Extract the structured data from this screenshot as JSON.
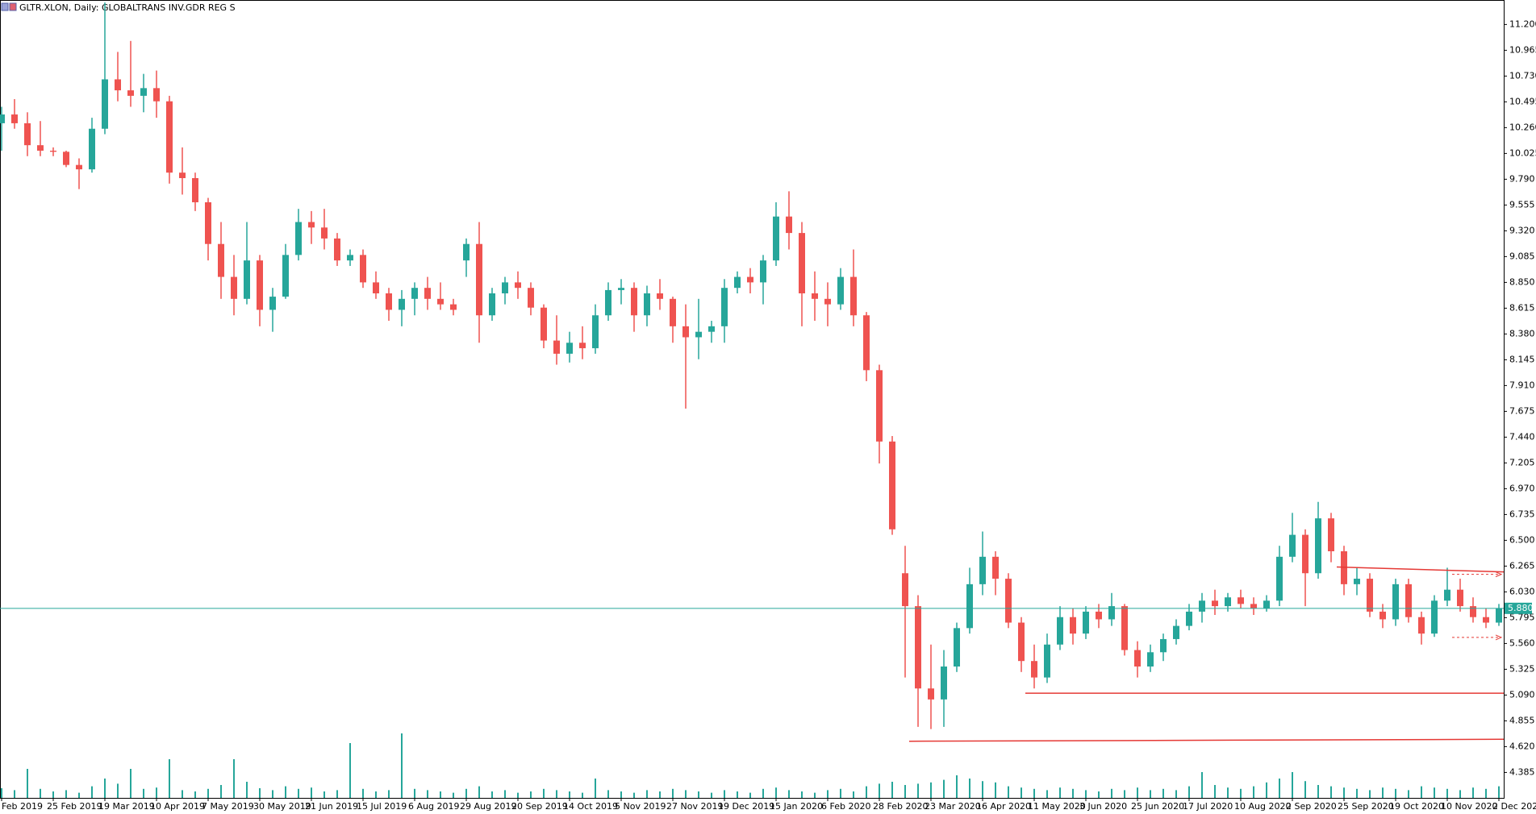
{
  "chart_data": {
    "type": "candlestick",
    "title": "GLTR.XLON, Daily:  GLOBALTRANS INV.GDR REG S",
    "up_color": "#26a69a",
    "down_color": "#ef5350",
    "volume_color": "#26a69a",
    "categories": [
      "Feb 2019",
      null,
      null,
      null,
      "25 Feb 2019",
      null,
      null,
      null,
      "19 Mar 2019",
      null,
      null,
      null,
      "10 Apr 2019",
      null,
      null,
      null,
      "7 May 2019",
      null,
      null,
      null,
      "30 May 2019",
      null,
      null,
      null,
      "21 Jun 2019",
      null,
      null,
      null,
      "15 Jul 2019",
      null,
      null,
      null,
      "6 Aug 2019",
      null,
      null,
      null,
      "29 Aug 2019",
      null,
      null,
      null,
      "20 Sep 2019",
      null,
      null,
      null,
      "14 Oct 2019",
      null,
      null,
      null,
      "5 Nov 2019",
      null,
      null,
      null,
      "27 Nov 2019",
      null,
      null,
      null,
      "19 Dec 2019",
      null,
      null,
      null,
      "15 Jan 2020",
      null,
      null,
      null,
      "6 Feb 2020",
      null,
      null,
      null,
      "28 Feb 2020",
      null,
      null,
      null,
      "23 Mar 2020",
      null,
      null,
      null,
      "16 Apr 2020",
      null,
      null,
      null,
      "11 May 2020",
      null,
      null,
      null,
      "3 Jun 2020",
      null,
      null,
      null,
      "25 Jun 2020",
      null,
      null,
      null,
      "17 Jul 2020",
      null,
      null,
      null,
      "10 Aug 2020",
      null,
      null,
      null,
      "2 Sep 2020",
      null,
      null,
      null,
      "25 Sep 2020",
      null,
      null,
      null,
      "19 Oct 2020",
      null,
      null,
      null,
      "10 Nov 2020",
      null,
      null,
      null,
      "2 Dec 2020"
    ],
    "open": [
      10.3,
      10.38,
      10.3,
      10.1,
      10.05,
      10.04,
      9.92,
      9.88,
      10.25,
      10.7,
      10.6,
      10.55,
      10.62,
      10.5,
      9.85,
      9.8,
      9.58,
      9.2,
      8.9,
      8.7,
      9.05,
      8.6,
      8.72,
      9.1,
      9.4,
      9.35,
      9.25,
      9.05,
      9.1,
      8.85,
      8.75,
      8.6,
      8.7,
      8.8,
      8.7,
      8.65,
      9.05,
      9.2,
      8.55,
      8.75,
      8.85,
      8.8,
      8.62,
      8.32,
      8.2,
      8.3,
      8.25,
      8.55,
      8.78,
      8.8,
      8.55,
      8.75,
      8.7,
      8.45,
      8.35,
      8.4,
      8.45,
      8.8,
      8.9,
      8.85,
      9.05,
      9.45,
      9.3,
      8.75,
      8.7,
      8.65,
      8.9,
      8.55,
      8.05,
      7.4,
      6.2,
      5.9,
      5.15,
      5.05,
      5.35,
      5.7,
      6.1,
      6.35,
      6.15,
      5.75,
      5.4,
      5.25,
      5.55,
      5.8,
      5.65,
      5.85,
      5.78,
      5.9,
      5.5,
      5.35,
      5.48,
      5.6,
      5.72,
      5.85,
      5.95,
      5.9,
      5.98,
      5.92,
      5.88,
      5.95,
      6.35,
      6.55,
      6.2,
      6.7,
      6.4,
      6.1,
      6.15,
      5.85,
      5.78,
      6.1,
      5.8,
      5.65,
      5.95,
      6.05,
      5.9,
      5.8,
      5.75
    ],
    "high": [
      10.45,
      10.52,
      10.4,
      10.32,
      10.08,
      10.05,
      9.98,
      10.35,
      11.4,
      10.95,
      11.05,
      10.75,
      10.78,
      10.55,
      10.08,
      9.85,
      9.62,
      9.4,
      9.1,
      9.4,
      9.1,
      8.8,
      9.2,
      9.52,
      9.5,
      9.52,
      9.3,
      9.15,
      9.15,
      8.95,
      8.8,
      8.78,
      8.85,
      8.9,
      8.85,
      8.7,
      9.25,
      9.4,
      8.8,
      8.9,
      8.95,
      8.85,
      8.65,
      8.55,
      8.4,
      8.45,
      8.65,
      8.85,
      8.88,
      8.85,
      8.82,
      8.88,
      8.72,
      8.65,
      8.7,
      8.5,
      8.88,
      8.95,
      8.98,
      9.1,
      9.58,
      9.68,
      9.4,
      8.95,
      8.85,
      8.98,
      9.15,
      8.58,
      8.1,
      7.45,
      6.45,
      6.0,
      5.55,
      5.5,
      5.75,
      6.25,
      6.58,
      6.4,
      6.2,
      5.8,
      5.55,
      5.65,
      5.9,
      5.88,
      5.9,
      5.92,
      6.02,
      5.92,
      5.58,
      5.55,
      5.65,
      5.78,
      5.92,
      6.02,
      6.05,
      6.02,
      6.05,
      5.98,
      6.0,
      6.45,
      6.75,
      6.6,
      6.85,
      6.75,
      6.45,
      6.25,
      6.2,
      5.92,
      6.15,
      6.15,
      5.85,
      6.0,
      6.25,
      6.15,
      5.98,
      5.88,
      5.92
    ],
    "low": [
      10.05,
      10.25,
      10.0,
      10.0,
      10.0,
      9.9,
      9.7,
      9.85,
      10.2,
      10.5,
      10.45,
      10.4,
      10.35,
      9.75,
      9.65,
      9.5,
      9.05,
      8.7,
      8.55,
      8.65,
      8.45,
      8.4,
      8.7,
      9.05,
      9.2,
      9.15,
      9.0,
      9.0,
      8.8,
      8.7,
      8.5,
      8.45,
      8.55,
      8.6,
      8.6,
      8.55,
      8.9,
      8.3,
      8.5,
      8.65,
      8.7,
      8.55,
      8.25,
      8.1,
      8.12,
      8.15,
      8.2,
      8.5,
      8.65,
      8.4,
      8.45,
      8.6,
      8.3,
      7.7,
      8.15,
      8.3,
      8.3,
      8.75,
      8.75,
      8.65,
      9.0,
      9.15,
      8.45,
      8.5,
      8.45,
      8.6,
      8.45,
      7.95,
      7.2,
      6.55,
      5.25,
      4.8,
      4.78,
      4.8,
      5.3,
      5.65,
      6.0,
      6.0,
      5.7,
      5.3,
      5.15,
      5.2,
      5.5,
      5.55,
      5.6,
      5.7,
      5.72,
      5.45,
      5.25,
      5.3,
      5.4,
      5.55,
      5.68,
      5.75,
      5.82,
      5.85,
      5.88,
      5.82,
      5.85,
      5.9,
      6.3,
      5.9,
      6.15,
      6.3,
      6.0,
      6.0,
      5.8,
      5.7,
      5.72,
      5.75,
      5.55,
      5.62,
      5.9,
      5.85,
      5.75,
      5.7,
      5.72
    ],
    "close": [
      10.38,
      10.3,
      10.1,
      10.05,
      10.04,
      9.92,
      9.88,
      10.25,
      10.7,
      10.6,
      10.55,
      10.62,
      10.5,
      9.85,
      9.8,
      9.58,
      9.2,
      8.9,
      8.7,
      9.05,
      8.6,
      8.72,
      9.1,
      9.4,
      9.35,
      9.25,
      9.05,
      9.1,
      8.85,
      8.75,
      8.6,
      8.7,
      8.8,
      8.7,
      8.65,
      8.6,
      9.2,
      8.55,
      8.75,
      8.85,
      8.8,
      8.62,
      8.32,
      8.2,
      8.3,
      8.25,
      8.55,
      8.78,
      8.8,
      8.55,
      8.75,
      8.7,
      8.45,
      8.35,
      8.4,
      8.45,
      8.8,
      8.9,
      8.85,
      9.05,
      9.45,
      9.3,
      8.75,
      8.7,
      8.65,
      8.9,
      8.55,
      8.05,
      7.4,
      6.6,
      5.9,
      5.15,
      5.05,
      5.35,
      5.7,
      6.1,
      6.35,
      6.15,
      5.75,
      5.4,
      5.25,
      5.55,
      5.8,
      5.65,
      5.85,
      5.78,
      5.9,
      5.5,
      5.35,
      5.48,
      5.6,
      5.72,
      5.85,
      5.95,
      5.9,
      5.98,
      5.92,
      5.88,
      5.95,
      6.35,
      6.55,
      6.2,
      6.7,
      6.4,
      6.1,
      6.15,
      5.85,
      5.78,
      6.1,
      5.8,
      5.65,
      5.95,
      6.05,
      5.9,
      5.8,
      5.75,
      5.88
    ],
    "volume": [
      15,
      12,
      45,
      14,
      10,
      12,
      8,
      18,
      30,
      22,
      45,
      14,
      16,
      60,
      12,
      10,
      14,
      20,
      60,
      25,
      15,
      12,
      18,
      14,
      16,
      10,
      12,
      85,
      14,
      10,
      12,
      100,
      14,
      12,
      10,
      8,
      14,
      18,
      10,
      12,
      8,
      10,
      14,
      12,
      10,
      8,
      30,
      12,
      10,
      8,
      12,
      10,
      14,
      12,
      10,
      8,
      12,
      10,
      8,
      14,
      16,
      12,
      10,
      8,
      12,
      14,
      10,
      18,
      22,
      25,
      20,
      22,
      24,
      28,
      35,
      30,
      26,
      24,
      18,
      16,
      14,
      12,
      16,
      14,
      12,
      10,
      14,
      12,
      16,
      12,
      14,
      12,
      18,
      40,
      20,
      16,
      14,
      18,
      24,
      30,
      40,
      26,
      20,
      18,
      16,
      14,
      12,
      16,
      14,
      12,
      18,
      16,
      14,
      12,
      16,
      14,
      18
    ],
    "vlim": [
      0,
      100
    ],
    "ylim": [
      4.153,
      11.423
    ],
    "yticks": [
      {
        "value": 11.2,
        "label": "11.200"
      },
      {
        "value": 10.965,
        "label": "10.965"
      },
      {
        "value": 10.73,
        "label": "10.730"
      },
      {
        "value": 10.495,
        "label": "10.495"
      },
      {
        "value": 10.26,
        "label": "10.260"
      },
      {
        "value": 10.025,
        "label": "10.025"
      },
      {
        "value": 9.79,
        "label": "9.790"
      },
      {
        "value": 9.555,
        "label": "9.555"
      },
      {
        "value": 9.32,
        "label": "9.320"
      },
      {
        "value": 9.085,
        "label": "9.085"
      },
      {
        "value": 8.85,
        "label": "8.850"
      },
      {
        "value": 8.615,
        "label": "8.615"
      },
      {
        "value": 8.38,
        "label": "8.380"
      },
      {
        "value": 8.145,
        "label": "8.145"
      },
      {
        "value": 7.91,
        "label": "7.910"
      },
      {
        "value": 7.675,
        "label": "7.675"
      },
      {
        "value": 7.44,
        "label": "7.440"
      },
      {
        "value": 7.205,
        "label": "7.205"
      },
      {
        "value": 6.97,
        "label": "6.970"
      },
      {
        "value": 6.735,
        "label": "6.735"
      },
      {
        "value": 6.5,
        "label": "6.500"
      },
      {
        "value": 6.265,
        "label": "6.265"
      },
      {
        "value": 6.03,
        "label": "6.030"
      },
      {
        "value": 5.795,
        "label": "5.795"
      },
      {
        "value": 5.56,
        "label": "5.560"
      },
      {
        "value": 5.325,
        "label": "5.325"
      },
      {
        "value": 5.09,
        "label": "5.090"
      },
      {
        "value": 4.855,
        "label": "4.855"
      },
      {
        "value": 4.62,
        "label": "4.620"
      },
      {
        "value": 4.385,
        "label": "4.385"
      }
    ],
    "current_price": {
      "value": 5.88,
      "label": "5.880"
    },
    "lines": [
      {
        "y0": 6.257,
        "y1": 6.212
      },
      {
        "y0": 5.107,
        "y1": 5.107
      },
      {
        "y0": 4.669,
        "y1": 4.687
      }
    ],
    "arrows": [
      6.19,
      5.615
    ]
  }
}
